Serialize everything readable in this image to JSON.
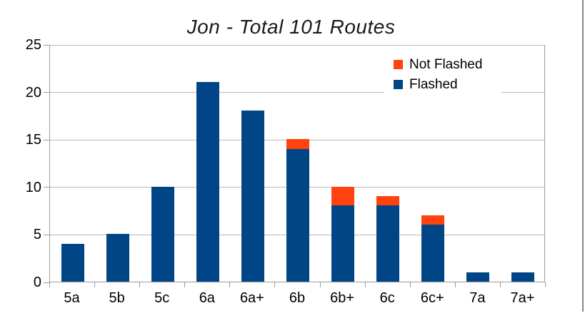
{
  "chart_data": {
    "type": "bar",
    "stacked": true,
    "title": "Jon - Total 101 Routes",
    "total_routes": 101,
    "categories": [
      "5a",
      "5b",
      "5c",
      "6a",
      "6a+",
      "6b",
      "6b+",
      "6c",
      "6c+",
      "7a",
      "7a+"
    ],
    "series": [
      {
        "name": "Flashed",
        "color": "#004586",
        "values": [
          4,
          5,
          10,
          21,
          18,
          14,
          8,
          8,
          6,
          1,
          1
        ]
      },
      {
        "name": "Not Flashed",
        "color": "#ff420e",
        "values": [
          0,
          0,
          0,
          0,
          0,
          1,
          2,
          1,
          1,
          0,
          0
        ]
      }
    ],
    "stack_totals": [
      4,
      5,
      10,
      21,
      18,
      15,
      10,
      9,
      7,
      1,
      1
    ],
    "xlabel": "",
    "ylabel": "",
    "ylim": [
      0,
      25
    ],
    "yticks": [
      0,
      5,
      10,
      15,
      20,
      25
    ],
    "grid": true,
    "legend": {
      "position": "top-right-inside",
      "entries": [
        {
          "label": "Not Flashed",
          "color": "#ff420e"
        },
        {
          "label": "Flashed",
          "color": "#004586"
        }
      ]
    }
  },
  "styles": {
    "background": "#ffffff",
    "grid_color": "#b9b9b9",
    "axis_color": "#9b9b9b",
    "title_color": "#1a1a1a",
    "text_color": "#000000"
  }
}
